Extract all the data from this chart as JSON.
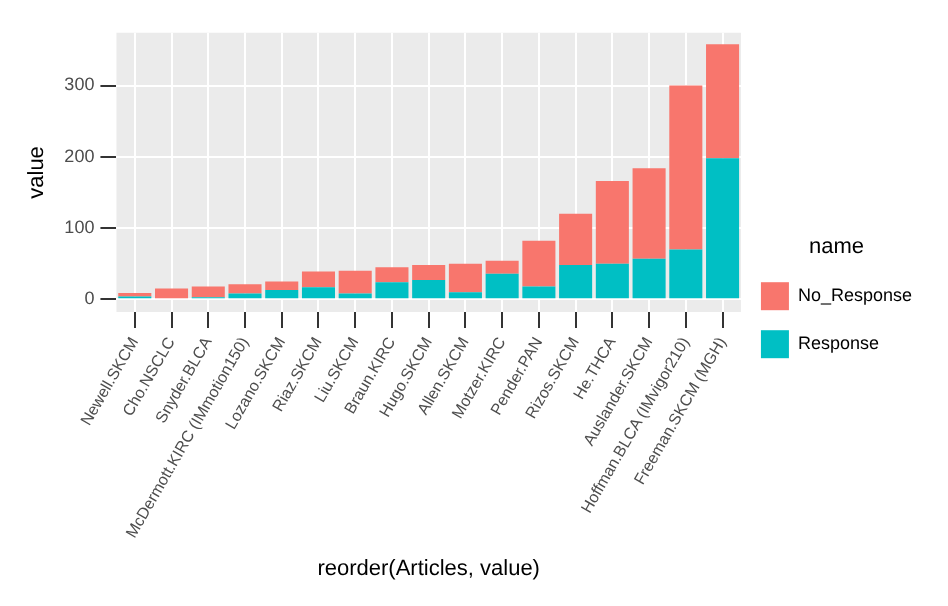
{
  "chart_data": {
    "type": "bar",
    "xlabel": "reorder(Articles, value)",
    "ylabel": "value",
    "legend_title": "name",
    "stacked": true,
    "legend": "right",
    "grid": true,
    "categories": [
      "Newell.SKCM",
      "Cho.NSCLC",
      "Snyder.BLCA",
      "McDermott.KIRC (IMmotion150)",
      "Lozano.SKCM",
      "Riaz.SKCM",
      "Liu.SKCM",
      "Braun.KIRC",
      "Hugo.SKCM",
      "Allen.SKCM",
      "Motzer.KIRC",
      "Pender.PAN",
      "Rizos.SKCM",
      "He.THCA",
      "Auslander.SKCM",
      "Hoffman.BLCA (IMvigor210)",
      "Freeman.SKCM (MGH)"
    ],
    "series": [
      {
        "name": "Response",
        "color": "#00bfc4",
        "values": [
          4,
          null,
          3,
          8,
          13,
          17,
          8,
          24,
          27,
          10,
          36,
          18,
          48,
          50,
          57,
          70,
          198
        ]
      },
      {
        "name": "No_Response",
        "color": "#f8766d",
        "values": [
          5,
          15,
          15,
          13,
          12,
          22,
          32,
          21,
          21,
          40,
          18,
          64,
          72,
          116,
          127,
          230,
          160
        ]
      }
    ],
    "ylim": [
      -18,
      374
    ],
    "yticks": [
      0,
      100,
      200,
      300
    ]
  }
}
